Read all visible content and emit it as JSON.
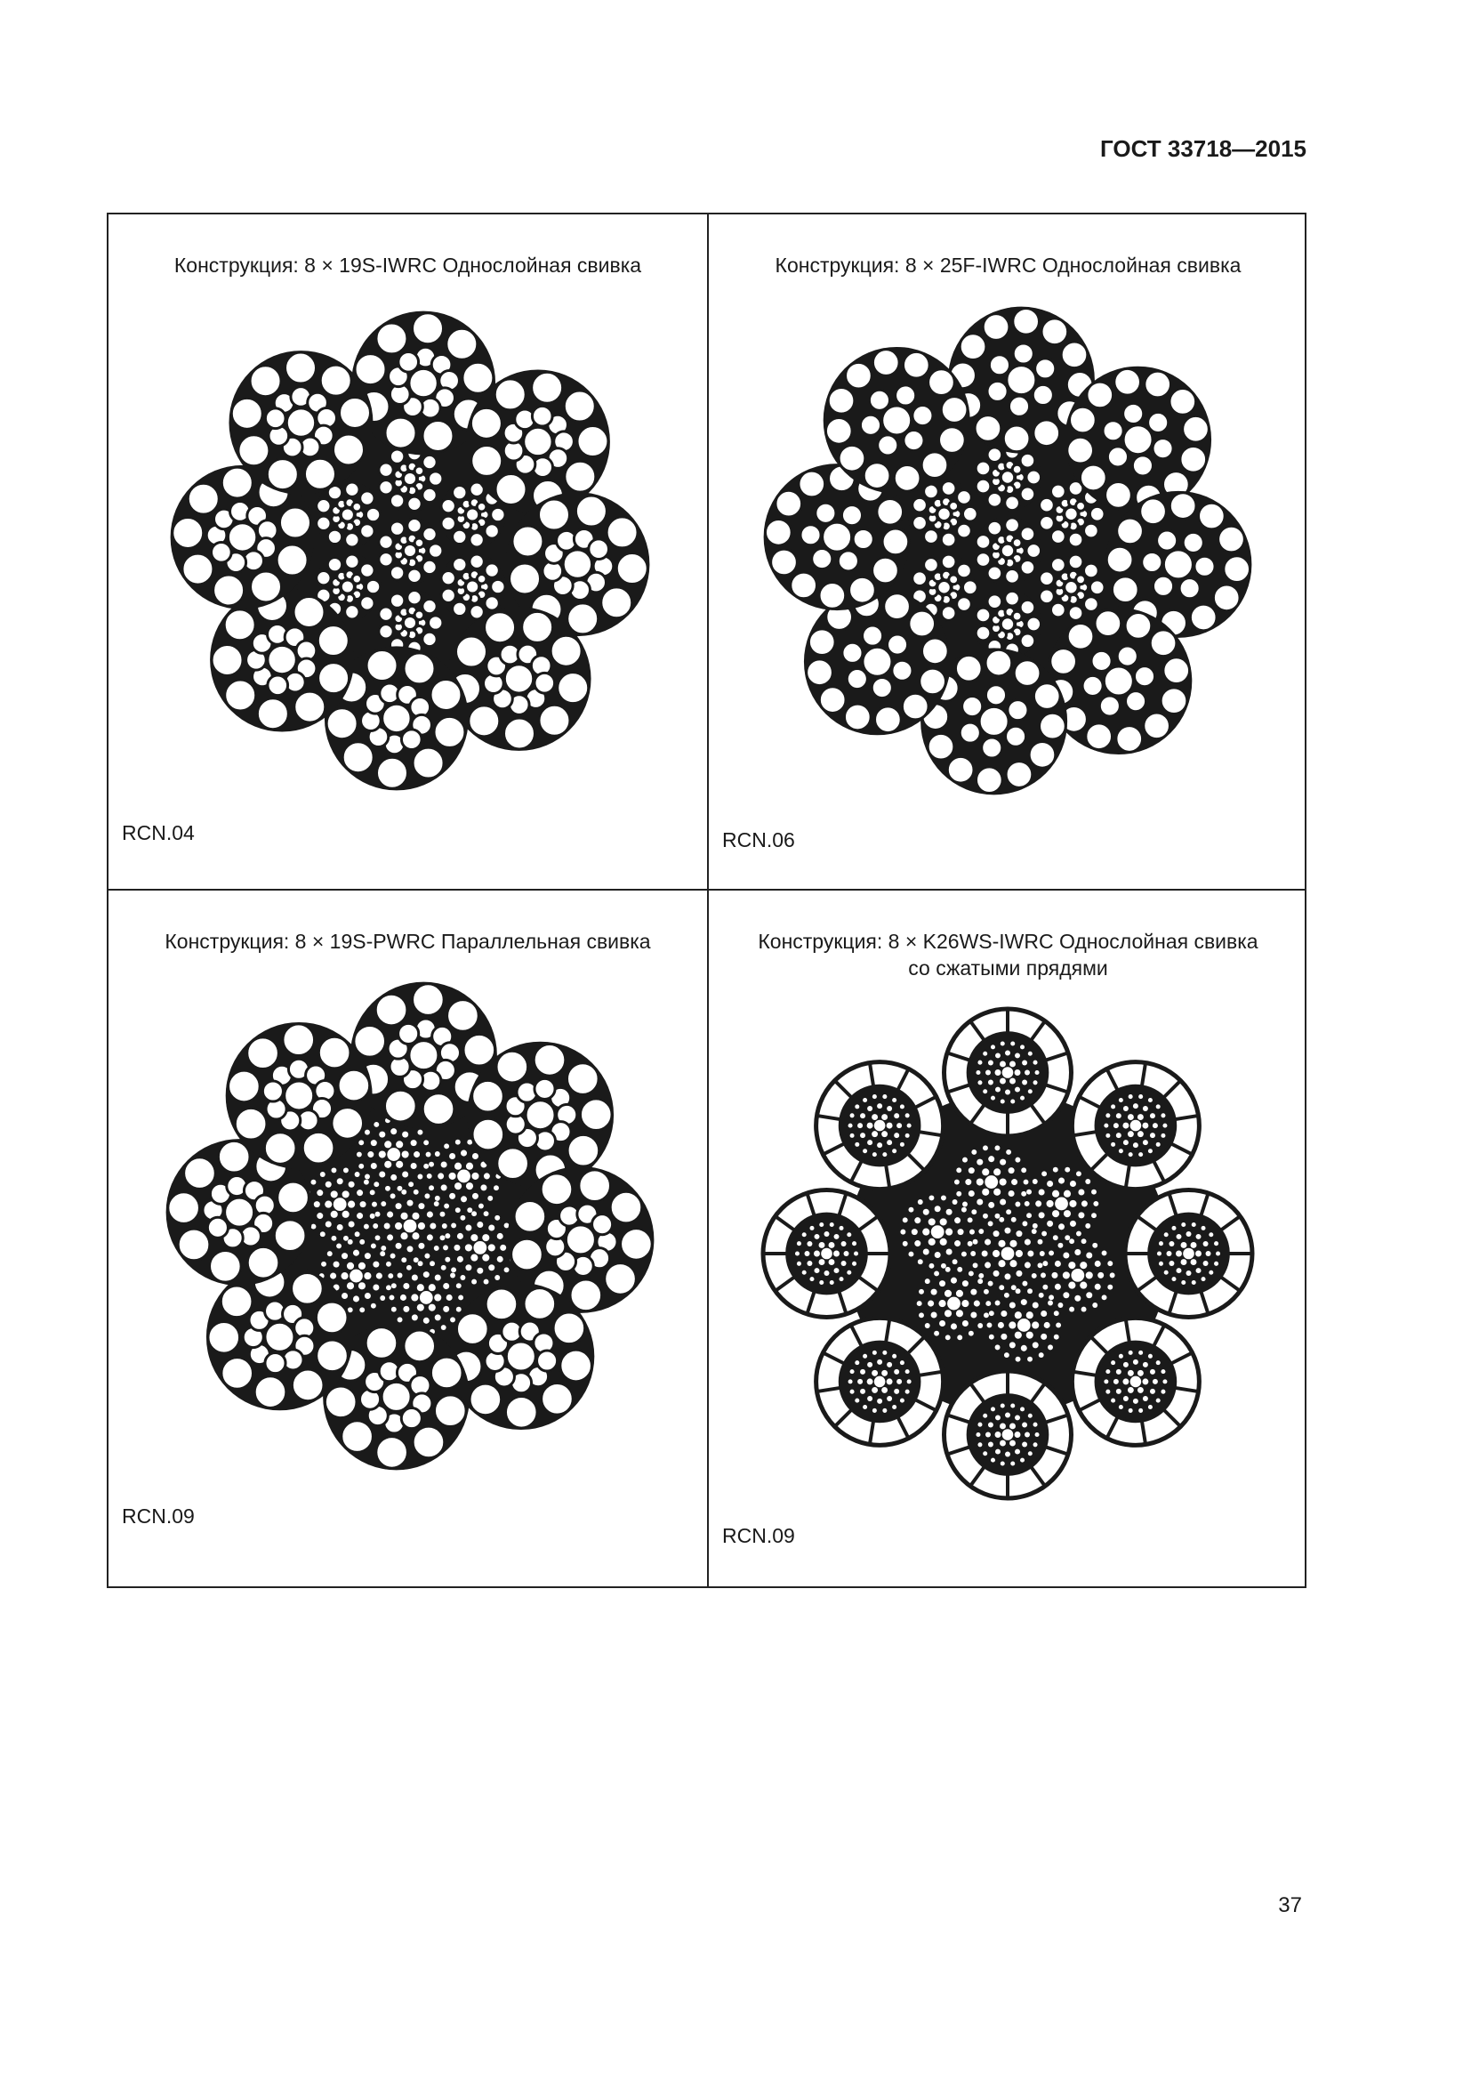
{
  "header": {
    "standard": "ГОСТ 33718—2015"
  },
  "page_number": "37",
  "cells": [
    {
      "title_line1": "Конструкция: 8 × 19S-IWRC Однослойная свивка",
      "title_line2": "",
      "code": "RCN.04",
      "rope": "19S"
    },
    {
      "title_line1": "Конструкция: 8 × 25F-IWRC Однослойная свивка",
      "title_line2": "",
      "code": "RCN.06",
      "rope": "25F"
    },
    {
      "title_line1": "Конструкция: 8 × 19S-PWRC Параллельная свивка",
      "title_line2": "",
      "code": "RCN.09",
      "rope": "PWRC"
    },
    {
      "title_line1": "Конструкция: 8 × K26WS-IWRC Однослойная свивка",
      "title_line2": "со сжатыми прядями",
      "code": "RCN.09",
      "rope": "K26WS"
    }
  ]
}
